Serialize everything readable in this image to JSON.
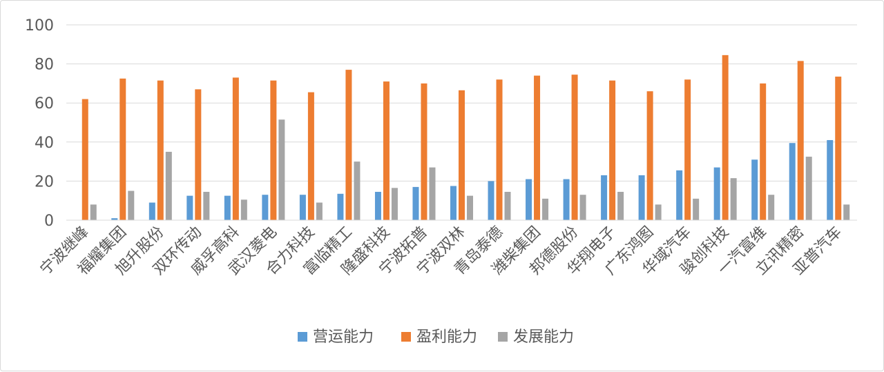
{
  "chart_data": {
    "type": "bar",
    "title": "",
    "xlabel": "",
    "ylabel": "",
    "ylim": [
      0,
      100
    ],
    "yticks": [
      0,
      20,
      40,
      60,
      80,
      100
    ],
    "grid": true,
    "legend_position": "bottom",
    "categories": [
      "宁波继峰",
      "福耀集团",
      "旭升股份",
      "双环传动",
      "威孚高科",
      "武汉菱电",
      "合力科技",
      "富临精工",
      "隆盛科技",
      "宁波拓普",
      "宁波双林",
      "青岛泰德",
      "潍柴集团",
      "邦德股份",
      "华翔电子",
      "广东鸿图",
      "华域汽车",
      "骏创科技",
      "一汽富维",
      "立讯精密",
      "亚普汽车"
    ],
    "series": [
      {
        "name": "营运能力",
        "color": "#5b9bd5",
        "values": [
          0,
          1,
          9,
          12.5,
          12.5,
          13,
          13,
          13.5,
          14.5,
          17,
          17.5,
          20,
          21,
          21,
          23,
          23,
          25.5,
          27,
          31,
          39.5,
          41
        ]
      },
      {
        "name": "盈利能力",
        "color": "#ed7d31",
        "values": [
          62,
          72.5,
          71.5,
          67,
          73,
          71.5,
          65.5,
          77,
          71,
          70,
          66.5,
          72,
          74,
          74.5,
          71.5,
          66,
          72,
          84.5,
          70,
          81.5,
          73.5
        ]
      },
      {
        "name": "发展能力",
        "color": "#a5a5a5",
        "values": [
          8,
          15,
          35,
          14.5,
          10.5,
          51.5,
          9,
          30,
          16.5,
          27,
          12.5,
          14.5,
          11,
          13,
          14.5,
          8,
          11,
          21.5,
          13,
          32.5,
          8
        ]
      }
    ]
  }
}
